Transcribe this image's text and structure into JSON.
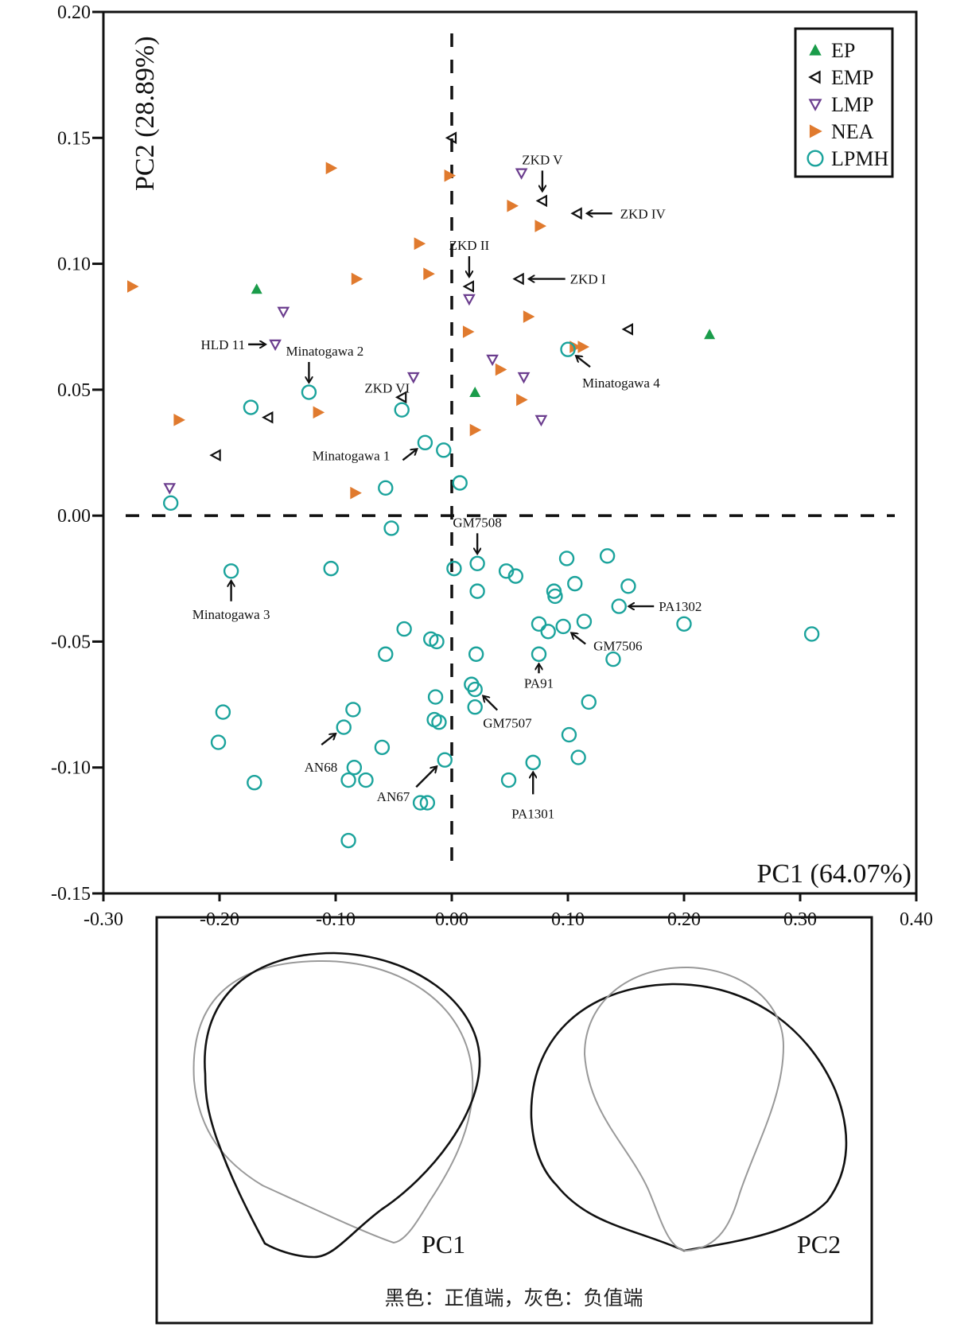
{
  "chart_data": {
    "type": "scatter",
    "title": "",
    "xlabel": "PC1 (64.07%)",
    "ylabel": "PC2 (28.89%)",
    "xlim": [
      -0.3,
      0.4
    ],
    "ylim": [
      -0.15,
      0.2
    ],
    "xticks": [
      "-0.30",
      "-0.20",
      "-0.10",
      "0.00",
      "0.10",
      "0.20",
      "0.30",
      "0.40"
    ],
    "yticks": [
      "0.20",
      "0.15",
      "0.10",
      "0.05",
      "0.00",
      "-0.05",
      "-0.10",
      "-0.15"
    ],
    "xtick_values": [
      -0.3,
      -0.2,
      -0.1,
      0.0,
      0.1,
      0.2,
      0.3,
      0.4
    ],
    "ytick_values": [
      0.2,
      0.15,
      0.1,
      0.05,
      0.0,
      -0.05,
      -0.1,
      -0.15
    ],
    "grid": false,
    "reference_lines": {
      "x": 0.0,
      "y": 0.0,
      "style": "dashed"
    },
    "legend": {
      "placement": "top-right",
      "entries": [
        {
          "name": "EP",
          "marker": "triangle-up-filled",
          "color": "#1a9c4a"
        },
        {
          "name": "EMP",
          "marker": "triangle-left-open",
          "color": "#111111"
        },
        {
          "name": "LMP",
          "marker": "triangle-down-open",
          "color": "#6b3d8e"
        },
        {
          "name": "NEA",
          "marker": "triangle-right-filled",
          "color": "#e07a2e"
        },
        {
          "name": "LPMH",
          "marker": "circle-open",
          "color": "#1ba39c"
        }
      ]
    },
    "series": [
      {
        "name": "EP",
        "points": [
          [
            -0.168,
            0.09
          ],
          [
            0.02,
            0.049
          ],
          [
            0.222,
            0.072
          ]
        ]
      },
      {
        "name": "EMP",
        "points": [
          [
            0.0,
            0.15
          ],
          [
            0.078,
            0.125
          ],
          [
            0.108,
            0.12
          ],
          [
            0.015,
            0.091
          ],
          [
            0.058,
            0.094
          ],
          [
            0.152,
            0.074
          ],
          [
            -0.043,
            0.047
          ],
          [
            -0.158,
            0.039
          ],
          [
            -0.203,
            0.024
          ]
        ]
      },
      {
        "name": "LMP",
        "points": [
          [
            0.06,
            0.136
          ],
          [
            0.015,
            0.086
          ],
          [
            -0.145,
            0.081
          ],
          [
            -0.152,
            0.068
          ],
          [
            0.035,
            0.062
          ],
          [
            -0.033,
            0.055
          ],
          [
            0.062,
            0.055
          ],
          [
            0.077,
            0.038
          ],
          [
            -0.243,
            0.011
          ]
        ]
      },
      {
        "name": "NEA",
        "points": [
          [
            -0.104,
            0.138
          ],
          [
            -0.002,
            0.135
          ],
          [
            0.052,
            0.123
          ],
          [
            0.076,
            0.115
          ],
          [
            -0.028,
            0.108
          ],
          [
            -0.275,
            0.091
          ],
          [
            -0.082,
            0.094
          ],
          [
            -0.02,
            0.096
          ],
          [
            0.066,
            0.079
          ],
          [
            0.014,
            0.073
          ],
          [
            0.106,
            0.067
          ],
          [
            0.113,
            0.067
          ],
          [
            0.042,
            0.058
          ],
          [
            0.06,
            0.046
          ],
          [
            -0.115,
            0.041
          ],
          [
            -0.235,
            0.038
          ],
          [
            0.02,
            0.034
          ],
          [
            -0.083,
            0.009
          ]
        ]
      },
      {
        "name": "LPMH",
        "points": [
          [
            0.1,
            0.066
          ],
          [
            -0.123,
            0.049
          ],
          [
            -0.173,
            0.043
          ],
          [
            -0.043,
            0.042
          ],
          [
            -0.023,
            0.029
          ],
          [
            -0.007,
            0.026
          ],
          [
            0.007,
            0.013
          ],
          [
            -0.057,
            0.011
          ],
          [
            -0.242,
            0.005
          ],
          [
            -0.052,
            -0.005
          ],
          [
            -0.19,
            -0.022
          ],
          [
            -0.104,
            -0.021
          ],
          [
            0.002,
            -0.021
          ],
          [
            0.022,
            -0.019
          ],
          [
            0.047,
            -0.022
          ],
          [
            0.055,
            -0.024
          ],
          [
            0.099,
            -0.017
          ],
          [
            0.134,
            -0.016
          ],
          [
            0.022,
            -0.03
          ],
          [
            0.088,
            -0.03
          ],
          [
            0.089,
            -0.032
          ],
          [
            0.106,
            -0.027
          ],
          [
            0.152,
            -0.028
          ],
          [
            0.144,
            -0.036
          ],
          [
            0.075,
            -0.043
          ],
          [
            0.083,
            -0.046
          ],
          [
            0.096,
            -0.044
          ],
          [
            0.114,
            -0.042
          ],
          [
            0.2,
            -0.043
          ],
          [
            0.31,
            -0.047
          ],
          [
            -0.041,
            -0.045
          ],
          [
            -0.018,
            -0.049
          ],
          [
            -0.013,
            -0.05
          ],
          [
            -0.057,
            -0.055
          ],
          [
            0.021,
            -0.055
          ],
          [
            0.075,
            -0.055
          ],
          [
            0.139,
            -0.057
          ],
          [
            0.017,
            -0.067
          ],
          [
            0.02,
            -0.069
          ],
          [
            0.02,
            -0.076
          ],
          [
            -0.014,
            -0.072
          ],
          [
            0.118,
            -0.074
          ],
          [
            -0.197,
            -0.078
          ],
          [
            -0.085,
            -0.077
          ],
          [
            -0.015,
            -0.081
          ],
          [
            -0.011,
            -0.082
          ],
          [
            -0.093,
            -0.084
          ],
          [
            0.101,
            -0.087
          ],
          [
            -0.201,
            -0.09
          ],
          [
            -0.06,
            -0.092
          ],
          [
            0.109,
            -0.096
          ],
          [
            -0.006,
            -0.097
          ],
          [
            0.07,
            -0.098
          ],
          [
            -0.084,
            -0.1
          ],
          [
            -0.089,
            -0.105
          ],
          [
            -0.074,
            -0.105
          ],
          [
            -0.17,
            -0.106
          ],
          [
            0.049,
            -0.105
          ],
          [
            -0.027,
            -0.114
          ],
          [
            -0.021,
            -0.114
          ],
          [
            -0.089,
            -0.129
          ]
        ]
      }
    ],
    "annotations": [
      {
        "text": "ZKD V",
        "target": [
          0.078,
          0.125
        ],
        "dir": "down"
      },
      {
        "text": "ZKD IV",
        "target": [
          0.108,
          0.12
        ],
        "dir": "left"
      },
      {
        "text": "ZKD II",
        "target": [
          0.015,
          0.091
        ],
        "dir": "down"
      },
      {
        "text": "ZKD I",
        "target": [
          0.058,
          0.094
        ],
        "dir": "left"
      },
      {
        "text": "HLD 11",
        "target": [
          -0.152,
          0.068
        ],
        "dir": "right"
      },
      {
        "text": "Minatogawa 2",
        "target": [
          -0.123,
          0.049
        ],
        "dir": "down"
      },
      {
        "text": "ZKD VI",
        "target": [
          -0.043,
          0.047
        ],
        "dir": "none"
      },
      {
        "text": "Minatogawa 4",
        "target": [
          0.1,
          0.066
        ],
        "dir": "up-left"
      },
      {
        "text": "Minatogawa 1",
        "target": [
          -0.023,
          0.029
        ],
        "dir": "up-right"
      },
      {
        "text": "GM7508",
        "target": [
          0.022,
          -0.019
        ],
        "dir": "down"
      },
      {
        "text": "Minatogawa 3",
        "target": [
          -0.19,
          -0.022
        ],
        "dir": "up"
      },
      {
        "text": "PA1302",
        "target": [
          0.144,
          -0.036
        ],
        "dir": "left"
      },
      {
        "text": "GM7506",
        "target": [
          0.096,
          -0.044
        ],
        "dir": "up-left"
      },
      {
        "text": "PA91",
        "target": [
          0.075,
          -0.055
        ],
        "dir": "up"
      },
      {
        "text": "GM7507",
        "target": [
          0.02,
          -0.069
        ],
        "dir": "up-left"
      },
      {
        "text": "AN68",
        "target": [
          -0.093,
          -0.084
        ],
        "dir": "up-right"
      },
      {
        "text": "AN67",
        "target": [
          -0.006,
          -0.097
        ],
        "dir": "up-right"
      },
      {
        "text": "PA1301",
        "target": [
          0.07,
          -0.098
        ],
        "dir": "up"
      }
    ]
  },
  "shape_panel": {
    "labels": [
      "PC1",
      "PC2"
    ],
    "caption": "黑色：正值端，灰色：负值端",
    "positive_color": "#111111",
    "negative_color": "#999999"
  }
}
